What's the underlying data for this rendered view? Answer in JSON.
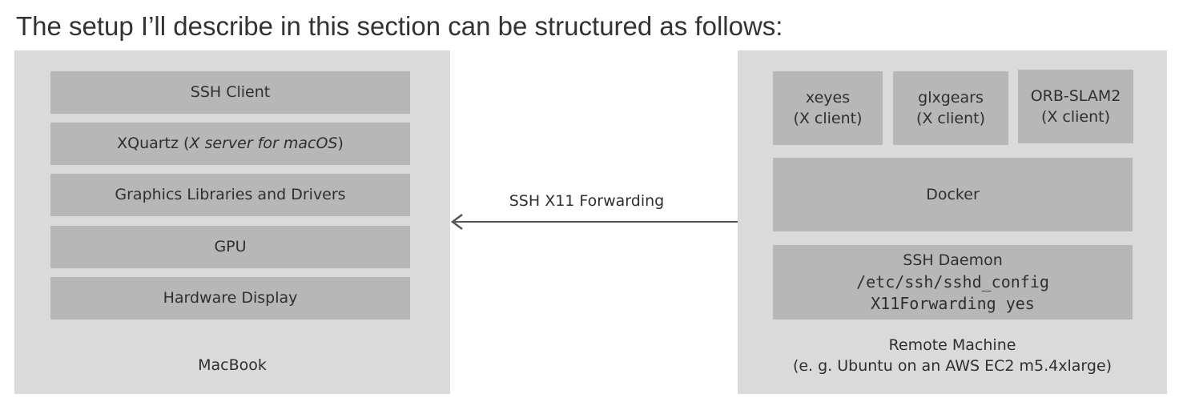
{
  "heading": "The setup I’ll describe in this section can be structured as follows:",
  "macbook": {
    "label": "MacBook",
    "layers": {
      "ssh_client": "SSH Client",
      "xquartz_prefix": "XQuartz (",
      "xquartz_italic": "X server for macOS",
      "xquartz_suffix": ")",
      "graphics": "Graphics Libraries and Drivers",
      "gpu": "GPU",
      "display": "Hardware Display"
    }
  },
  "connection": {
    "label": "SSH X11 Forwarding"
  },
  "remote": {
    "label_line1": "Remote Machine",
    "label_line2": "(e. g. Ubuntu on an AWS EC2 m5.4xlarge)",
    "clients": [
      {
        "name": "xeyes",
        "role": "(X client)"
      },
      {
        "name": "glxgears",
        "role": "(X client)"
      },
      {
        "name": "ORB-SLAM2",
        "role": "(X client)"
      }
    ],
    "docker": "Docker",
    "daemon": {
      "title": "SSH Daemon",
      "config_path": "/etc/ssh/sshd_config",
      "config_line": "X11Forwarding yes"
    }
  },
  "colors": {
    "panel": "#dadada",
    "box": "#b7b7b7",
    "arrow": "#555555"
  }
}
